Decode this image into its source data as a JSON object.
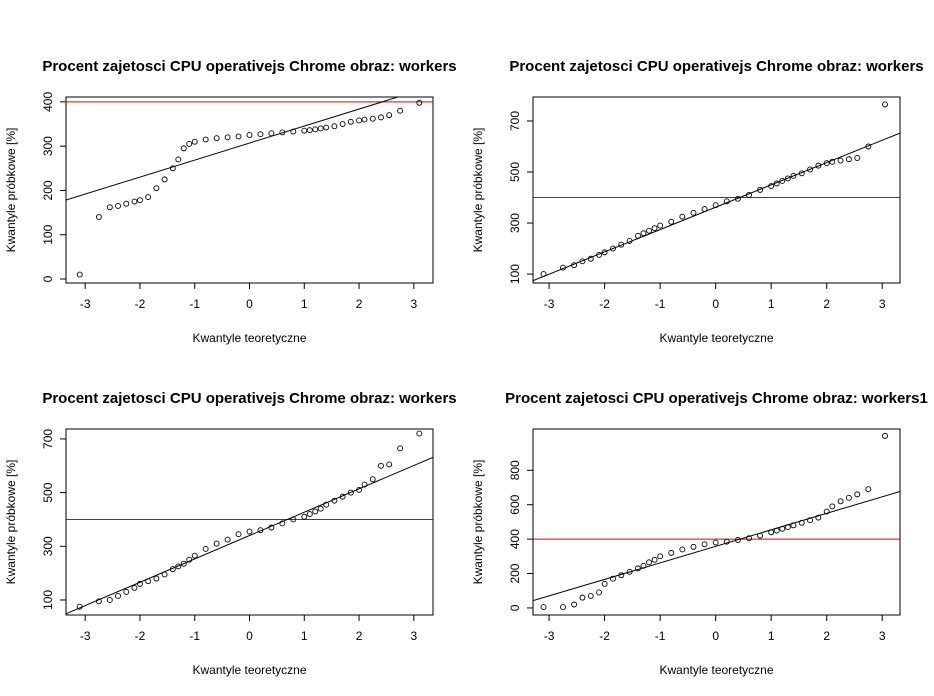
{
  "chart_data": [
    {
      "type": "scatter",
      "title": "Procent zajetosci CPU operativejs Chrome obraz:  workers",
      "xlabel": "Kwantyle teoretyczne",
      "ylabel": "Kwantyle próbkowe [%]",
      "x": [
        -3.1,
        -2.75,
        -2.55,
        -2.4,
        -2.25,
        -2.1,
        -2.0,
        -1.85,
        -1.7,
        -1.55,
        -1.4,
        -1.3,
        -1.2,
        -1.1,
        -1.0,
        -0.8,
        -0.6,
        -0.4,
        -0.2,
        0,
        0.2,
        0.4,
        0.6,
        0.8,
        1.0,
        1.1,
        1.2,
        1.3,
        1.4,
        1.55,
        1.7,
        1.85,
        2.0,
        2.1,
        2.25,
        2.4,
        2.55,
        2.75,
        3.1
      ],
      "y": [
        10,
        140,
        162,
        165,
        170,
        175,
        178,
        185,
        205,
        225,
        250,
        270,
        295,
        305,
        310,
        315,
        318,
        320,
        322,
        325,
        327,
        329,
        331,
        333,
        335,
        336,
        338,
        340,
        342,
        345,
        350,
        355,
        358,
        360,
        362,
        365,
        370,
        380,
        398
      ],
      "xlim": [
        -3.35,
        3.35
      ],
      "ylim": [
        -9,
        411
      ],
      "xticks": [
        -3,
        -2,
        -1,
        0,
        1,
        2,
        3
      ],
      "yticks": [
        0,
        100,
        200,
        300,
        400
      ],
      "qqline": {
        "intercept": 307,
        "slope": 38.4
      },
      "hline": {
        "value": 400,
        "color": "#e00000"
      },
      "color": "#000000"
    },
    {
      "type": "scatter",
      "title": "Procent zajetosci CPU operativejs Chrome obraz:  workers",
      "xlabel": "Kwantyle teoretyczne",
      "ylabel": "Kwantyle próbkowe [%]",
      "x": [
        -3.1,
        -2.75,
        -2.55,
        -2.4,
        -2.25,
        -2.1,
        -2.0,
        -1.85,
        -1.7,
        -1.55,
        -1.4,
        -1.3,
        -1.2,
        -1.1,
        -1.0,
        -0.8,
        -0.6,
        -0.4,
        -0.2,
        0,
        0.2,
        0.4,
        0.6,
        0.8,
        1.0,
        1.1,
        1.2,
        1.3,
        1.4,
        1.55,
        1.7,
        1.85,
        2.0,
        2.1,
        2.25,
        2.4,
        2.55,
        2.75,
        3.05
      ],
      "y": [
        100,
        125,
        135,
        150,
        160,
        175,
        185,
        200,
        215,
        230,
        250,
        260,
        270,
        280,
        290,
        305,
        325,
        340,
        355,
        370,
        385,
        395,
        410,
        430,
        445,
        455,
        465,
        475,
        485,
        495,
        510,
        525,
        535,
        540,
        545,
        550,
        555,
        600,
        765
      ],
      "xlim": [
        -3.29,
        3.32
      ],
      "ylim": [
        65,
        794
      ],
      "xticks": [
        -3,
        -2,
        -1,
        0,
        1,
        2,
        3
      ],
      "yticks": [
        100,
        300,
        500,
        700
      ],
      "qqline": {
        "intercept": 362,
        "slope": 87.5
      },
      "hline": {
        "value": 400,
        "color": "#e00000"
      },
      "color": "#000000"
    },
    {
      "type": "scatter",
      "title": "Procent zajetosci CPU operativejs Chrome obraz:  workers",
      "xlabel": "Kwantyle teoretyczne",
      "ylabel": "Kwantyle próbkowe [%]",
      "x": [
        -3.1,
        -2.75,
        -2.55,
        -2.4,
        -2.25,
        -2.1,
        -2.0,
        -1.85,
        -1.7,
        -1.55,
        -1.4,
        -1.3,
        -1.2,
        -1.1,
        -1.0,
        -0.8,
        -0.6,
        -0.4,
        -0.2,
        0,
        0.2,
        0.4,
        0.6,
        0.8,
        1.0,
        1.1,
        1.2,
        1.3,
        1.4,
        1.55,
        1.7,
        1.85,
        2.0,
        2.1,
        2.25,
        2.4,
        2.55,
        2.75,
        3.1
      ],
      "y": [
        75,
        95,
        100,
        115,
        130,
        145,
        160,
        170,
        180,
        195,
        215,
        225,
        235,
        250,
        265,
        290,
        310,
        325,
        345,
        355,
        360,
        370,
        385,
        400,
        410,
        420,
        430,
        440,
        455,
        470,
        485,
        500,
        510,
        530,
        550,
        600,
        605,
        665,
        720
      ],
      "xlim": [
        -3.35,
        3.35
      ],
      "ylim": [
        44,
        737
      ],
      "xticks": [
        -3,
        -2,
        -1,
        0,
        1,
        2,
        3
      ],
      "yticks": [
        100,
        300,
        500,
        700
      ],
      "qqline": {
        "intercept": 340,
        "slope": 87
      },
      "hline": {
        "value": 400,
        "color": "#e00000"
      },
      "color": "#000000"
    },
    {
      "type": "scatter",
      "title": "Procent zajetosci CPU operativejs Chrome obraz:  workers1",
      "xlabel": "Kwantyle teoretyczne",
      "ylabel": "Kwantyle próbkowe [%]",
      "x": [
        -3.1,
        -2.75,
        -2.55,
        -2.4,
        -2.25,
        -2.1,
        -2.0,
        -1.85,
        -1.7,
        -1.55,
        -1.4,
        -1.3,
        -1.2,
        -1.1,
        -1.0,
        -0.8,
        -0.6,
        -0.4,
        -0.2,
        0,
        0.2,
        0.4,
        0.6,
        0.8,
        1.0,
        1.1,
        1.2,
        1.3,
        1.4,
        1.55,
        1.7,
        1.85,
        2.0,
        2.1,
        2.25,
        2.4,
        2.55,
        2.75,
        3.05
      ],
      "y": [
        5,
        5,
        20,
        60,
        70,
        90,
        140,
        170,
        190,
        210,
        230,
        245,
        265,
        280,
        300,
        320,
        340,
        355,
        370,
        380,
        385,
        395,
        405,
        420,
        440,
        450,
        460,
        470,
        480,
        495,
        510,
        525,
        560,
        590,
        620,
        640,
        660,
        690,
        1000
      ],
      "xlim": [
        -3.29,
        3.32
      ],
      "ylim": [
        -41,
        1040
      ],
      "xticks": [
        -3,
        -2,
        -1,
        0,
        1,
        2,
        3
      ],
      "yticks": [
        0,
        200,
        400,
        600,
        800
      ],
      "qqline": {
        "intercept": 358,
        "slope": 96
      },
      "hline": {
        "value": 400,
        "color": "#e00000"
      },
      "color": "#000000"
    }
  ]
}
